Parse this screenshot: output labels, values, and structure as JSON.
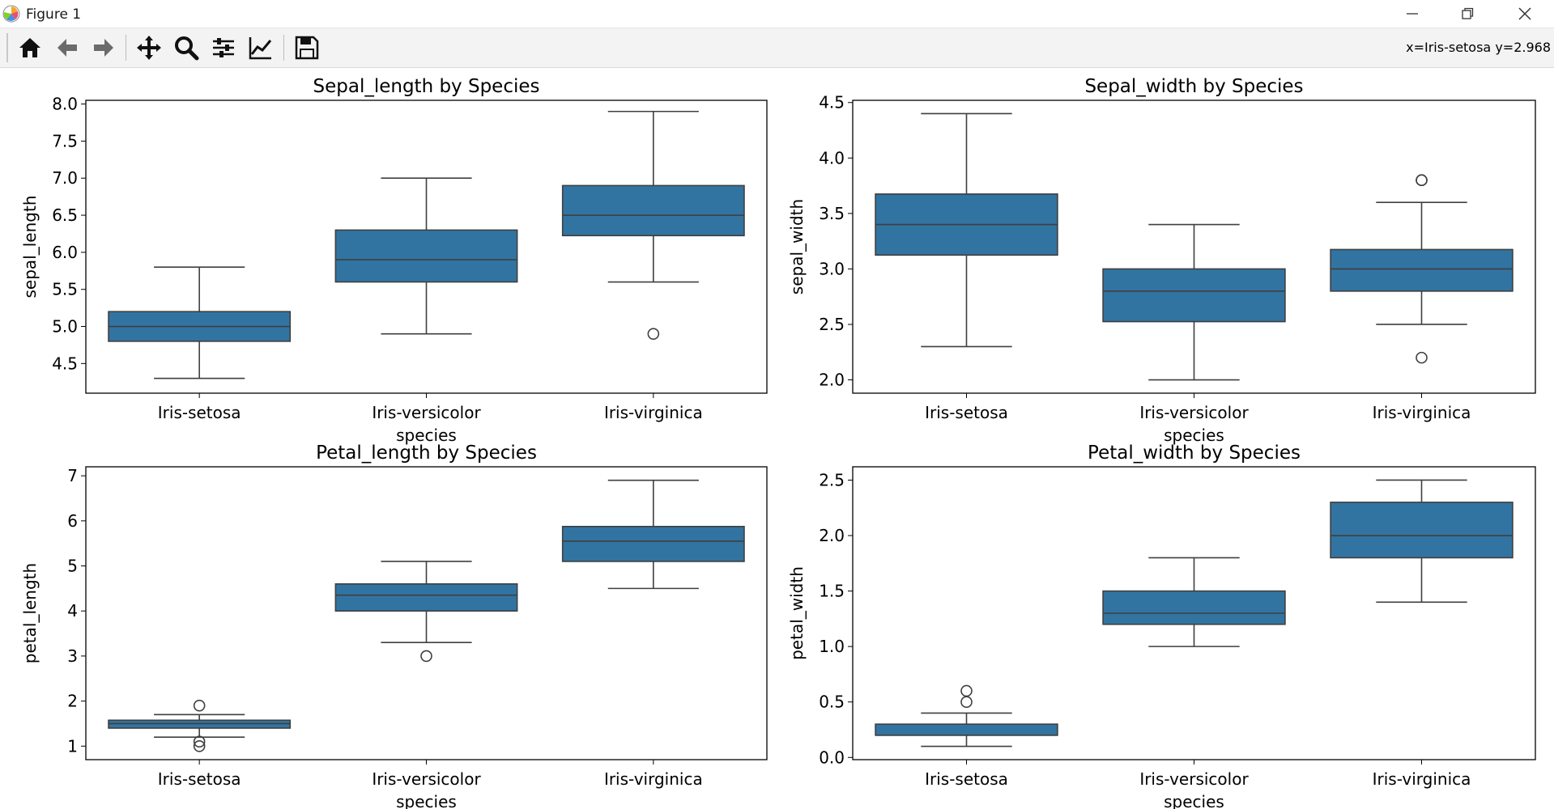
{
  "window": {
    "title": "Figure 1",
    "icons": {
      "app": "matplotlib-icon",
      "minimize": "minimize-icon",
      "maximize": "restore-icon",
      "close": "close-icon"
    }
  },
  "toolbar": {
    "buttons": [
      {
        "name": "home-button",
        "icon": "home-icon"
      },
      {
        "name": "back-button",
        "icon": "arrow-left-icon"
      },
      {
        "name": "forward-button",
        "icon": "arrow-right-icon"
      },
      {
        "name": "pan-button",
        "icon": "move-icon"
      },
      {
        "name": "zoom-button",
        "icon": "magnifier-icon"
      },
      {
        "name": "subplots-button",
        "icon": "sliders-icon"
      },
      {
        "name": "axes-button",
        "icon": "line-chart-icon"
      },
      {
        "name": "save-button",
        "icon": "floppy-disk-icon"
      }
    ],
    "coords": "x=Iris-setosa y=2.968"
  },
  "colors": {
    "box_fill": "#3274a1",
    "box_line": "#3f3f3f"
  },
  "chart_data": [
    {
      "type": "box",
      "title": "Sepal_length by Species",
      "xlabel": "species",
      "ylabel": "sepal_length",
      "categories": [
        "Iris-setosa",
        "Iris-versicolor",
        "Iris-virginica"
      ],
      "ylim": [
        4.1,
        8.05
      ],
      "yticks": [
        4.5,
        5.0,
        5.5,
        6.0,
        6.5,
        7.0,
        7.5,
        8.0
      ],
      "ytick_labels": [
        "4.5",
        "5.0",
        "5.5",
        "6.0",
        "6.5",
        "7.0",
        "7.5",
        "8.0"
      ],
      "boxes": [
        {
          "whislo": 4.3,
          "q1": 4.8,
          "med": 5.0,
          "q3": 5.2,
          "whishi": 5.8,
          "fliers": []
        },
        {
          "whislo": 4.9,
          "q1": 5.6,
          "med": 5.9,
          "q3": 6.3,
          "whishi": 7.0,
          "fliers": []
        },
        {
          "whislo": 5.6,
          "q1": 6.225,
          "med": 6.5,
          "q3": 6.9,
          "whishi": 7.9,
          "fliers": [
            4.9
          ]
        }
      ]
    },
    {
      "type": "box",
      "title": "Sepal_width by Species",
      "xlabel": "species",
      "ylabel": "sepal_width",
      "categories": [
        "Iris-setosa",
        "Iris-versicolor",
        "Iris-virginica"
      ],
      "ylim": [
        1.88,
        4.52
      ],
      "yticks": [
        2.0,
        2.5,
        3.0,
        3.5,
        4.0,
        4.5
      ],
      "ytick_labels": [
        "2.0",
        "2.5",
        "3.0",
        "3.5",
        "4.0",
        "4.5"
      ],
      "boxes": [
        {
          "whislo": 2.3,
          "q1": 3.125,
          "med": 3.4,
          "q3": 3.675,
          "whishi": 4.4,
          "fliers": []
        },
        {
          "whislo": 2.0,
          "q1": 2.525,
          "med": 2.8,
          "q3": 3.0,
          "whishi": 3.4,
          "fliers": []
        },
        {
          "whislo": 2.5,
          "q1": 2.8,
          "med": 3.0,
          "q3": 3.175,
          "whishi": 3.6,
          "fliers": [
            3.8,
            3.8,
            2.2
          ]
        }
      ]
    },
    {
      "type": "box",
      "title": "Petal_length by Species",
      "xlabel": "species",
      "ylabel": "petal_length",
      "categories": [
        "Iris-setosa",
        "Iris-versicolor",
        "Iris-virginica"
      ],
      "ylim": [
        0.7,
        7.2
      ],
      "yticks": [
        1,
        2,
        3,
        4,
        5,
        6,
        7
      ],
      "ytick_labels": [
        "1",
        "2",
        "3",
        "4",
        "5",
        "6",
        "7"
      ],
      "boxes": [
        {
          "whislo": 1.2,
          "q1": 1.4,
          "med": 1.5,
          "q3": 1.575,
          "whishi": 1.7,
          "fliers": [
            1.9,
            1.1,
            1.0
          ]
        },
        {
          "whislo": 3.3,
          "q1": 4.0,
          "med": 4.35,
          "q3": 4.6,
          "whishi": 5.1,
          "fliers": [
            3.0
          ]
        },
        {
          "whislo": 4.5,
          "q1": 5.1,
          "med": 5.55,
          "q3": 5.875,
          "whishi": 6.9,
          "fliers": []
        }
      ]
    },
    {
      "type": "box",
      "title": "Petal_width by Species",
      "xlabel": "species",
      "ylabel": "petal_width",
      "categories": [
        "Iris-setosa",
        "Iris-versicolor",
        "Iris-virginica"
      ],
      "ylim": [
        -0.02,
        2.62
      ],
      "yticks": [
        0.0,
        0.5,
        1.0,
        1.5,
        2.0,
        2.5
      ],
      "ytick_labels": [
        "0.0",
        "0.5",
        "1.0",
        "1.5",
        "2.0",
        "2.5"
      ],
      "boxes": [
        {
          "whislo": 0.1,
          "q1": 0.2,
          "med": 0.2,
          "q3": 0.3,
          "whishi": 0.4,
          "fliers": [
            0.5,
            0.6
          ]
        },
        {
          "whislo": 1.0,
          "q1": 1.2,
          "med": 1.3,
          "q3": 1.5,
          "whishi": 1.8,
          "fliers": []
        },
        {
          "whislo": 1.4,
          "q1": 1.8,
          "med": 2.0,
          "q3": 2.3,
          "whishi": 2.5,
          "fliers": []
        }
      ]
    }
  ]
}
